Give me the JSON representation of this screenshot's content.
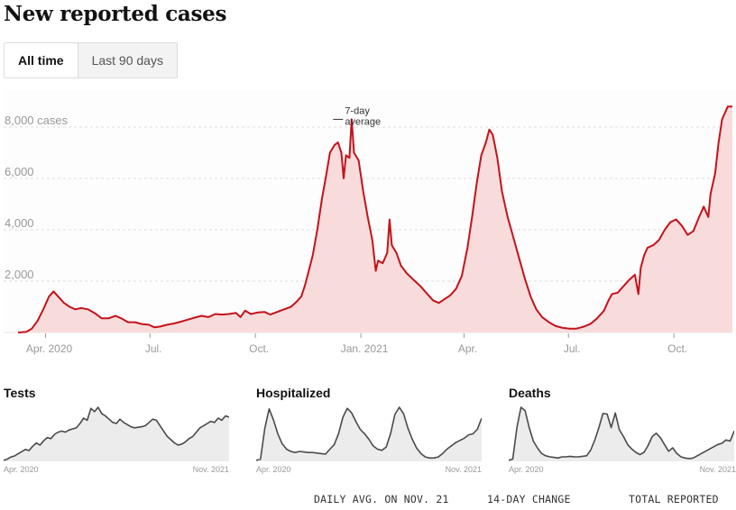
{
  "header": {
    "title": "New reported cases"
  },
  "toggle": {
    "options": [
      {
        "label": "All time",
        "active": true
      },
      {
        "label": "Last 90 days",
        "active": false
      }
    ]
  },
  "colors": {
    "line": "#c4121a",
    "fill": "#f8dcdc",
    "grid": "#dddddd",
    "axis_text": "#999999",
    "small_line": "#4a4a4a",
    "small_fill": "#ececec"
  },
  "chart_data": [
    {
      "type": "area",
      "title": "New reported cases",
      "xlabel": "",
      "ylabel": "cases",
      "ylim": [
        0,
        8800
      ],
      "xlim": [
        "2020-03-08",
        "2021-11-21"
      ],
      "grid": true,
      "y_ticks": [
        {
          "value": 2000,
          "label": "2,000"
        },
        {
          "value": 4000,
          "label": "4,000"
        },
        {
          "value": 6000,
          "label": "6,000"
        },
        {
          "value": 8000,
          "label": "8,000 cases"
        }
      ],
      "x_ticks": [
        {
          "date": "2020-04-01",
          "label": "Apr. 2020"
        },
        {
          "date": "2020-07-01",
          "label": "Jul."
        },
        {
          "date": "2020-10-01",
          "label": "Oct."
        },
        {
          "date": "2021-01-01",
          "label": "Jan. 2021"
        },
        {
          "date": "2021-04-01",
          "label": "Apr."
        },
        {
          "date": "2021-07-01",
          "label": "Jul."
        },
        {
          "date": "2021-10-01",
          "label": "Oct."
        }
      ],
      "annotation": {
        "text_line1": "7-day",
        "text_line2": "average",
        "date": "2020-12-07",
        "value": 8300
      },
      "series": [
        {
          "name": "7-day average",
          "points": [
            [
              "2020-03-08",
              0
            ],
            [
              "2020-03-15",
              20
            ],
            [
              "2020-03-20",
              150
            ],
            [
              "2020-03-25",
              450
            ],
            [
              "2020-03-30",
              900
            ],
            [
              "2020-04-04",
              1400
            ],
            [
              "2020-04-08",
              1600
            ],
            [
              "2020-04-12",
              1400
            ],
            [
              "2020-04-17",
              1150
            ],
            [
              "2020-04-22",
              1000
            ],
            [
              "2020-04-27",
              900
            ],
            [
              "2020-05-02",
              950
            ],
            [
              "2020-05-08",
              900
            ],
            [
              "2020-05-14",
              750
            ],
            [
              "2020-05-20",
              550
            ],
            [
              "2020-05-26",
              550
            ],
            [
              "2020-06-01",
              650
            ],
            [
              "2020-06-06",
              550
            ],
            [
              "2020-06-12",
              400
            ],
            [
              "2020-06-18",
              400
            ],
            [
              "2020-06-24",
              330
            ],
            [
              "2020-06-30",
              300
            ],
            [
              "2020-07-05",
              200
            ],
            [
              "2020-07-10",
              230
            ],
            [
              "2020-07-16",
              300
            ],
            [
              "2020-07-22",
              350
            ],
            [
              "2020-07-28",
              420
            ],
            [
              "2020-08-03",
              500
            ],
            [
              "2020-08-09",
              580
            ],
            [
              "2020-08-15",
              650
            ],
            [
              "2020-08-21",
              600
            ],
            [
              "2020-08-27",
              720
            ],
            [
              "2020-09-02",
              700
            ],
            [
              "2020-09-08",
              720
            ],
            [
              "2020-09-14",
              760
            ],
            [
              "2020-09-18",
              600
            ],
            [
              "2020-09-22",
              850
            ],
            [
              "2020-09-27",
              720
            ],
            [
              "2020-10-03",
              780
            ],
            [
              "2020-10-09",
              800
            ],
            [
              "2020-10-14",
              700
            ],
            [
              "2020-10-20",
              800
            ],
            [
              "2020-10-26",
              900
            ],
            [
              "2020-11-01",
              1000
            ],
            [
              "2020-11-06",
              1200
            ],
            [
              "2020-11-10",
              1400
            ],
            [
              "2020-11-13",
              1800
            ],
            [
              "2020-11-16",
              2300
            ],
            [
              "2020-11-20",
              3000
            ],
            [
              "2020-11-24",
              4000
            ],
            [
              "2020-11-28",
              5200
            ],
            [
              "2020-12-02",
              6200
            ],
            [
              "2020-12-05",
              7000
            ],
            [
              "2020-12-09",
              7300
            ],
            [
              "2020-12-12",
              7400
            ],
            [
              "2020-12-15",
              7000
            ],
            [
              "2020-12-17",
              6000
            ],
            [
              "2020-12-19",
              6900
            ],
            [
              "2020-12-22",
              6800
            ],
            [
              "2020-12-24",
              8300
            ],
            [
              "2020-12-26",
              7000
            ],
            [
              "2020-12-30",
              6700
            ],
            [
              "2021-01-03",
              5500
            ],
            [
              "2021-01-07",
              4500
            ],
            [
              "2021-01-11",
              3600
            ],
            [
              "2021-01-14",
              2400
            ],
            [
              "2021-01-16",
              2800
            ],
            [
              "2021-01-20",
              2700
            ],
            [
              "2021-01-24",
              3100
            ],
            [
              "2021-01-26",
              4400
            ],
            [
              "2021-01-28",
              3400
            ],
            [
              "2021-02-01",
              3100
            ],
            [
              "2021-02-05",
              2600
            ],
            [
              "2021-02-10",
              2300
            ],
            [
              "2021-02-16",
              2050
            ],
            [
              "2021-02-22",
              1800
            ],
            [
              "2021-02-28",
              1500
            ],
            [
              "2021-03-05",
              1250
            ],
            [
              "2021-03-10",
              1150
            ],
            [
              "2021-03-15",
              1300
            ],
            [
              "2021-03-20",
              1450
            ],
            [
              "2021-03-25",
              1700
            ],
            [
              "2021-03-30",
              2200
            ],
            [
              "2021-04-04",
              3300
            ],
            [
              "2021-04-08",
              4500
            ],
            [
              "2021-04-12",
              5800
            ],
            [
              "2021-04-16",
              6900
            ],
            [
              "2021-04-20",
              7400
            ],
            [
              "2021-04-23",
              7900
            ],
            [
              "2021-04-26",
              7700
            ],
            [
              "2021-04-30",
              6800
            ],
            [
              "2021-05-04",
              5500
            ],
            [
              "2021-05-09",
              4500
            ],
            [
              "2021-05-14",
              3700
            ],
            [
              "2021-05-19",
              2900
            ],
            [
              "2021-05-24",
              2100
            ],
            [
              "2021-05-29",
              1400
            ],
            [
              "2021-06-03",
              900
            ],
            [
              "2021-06-08",
              600
            ],
            [
              "2021-06-14",
              400
            ],
            [
              "2021-06-20",
              250
            ],
            [
              "2021-06-26",
              180
            ],
            [
              "2021-07-02",
              150
            ],
            [
              "2021-07-08",
              150
            ],
            [
              "2021-07-14",
              220
            ],
            [
              "2021-07-20",
              330
            ],
            [
              "2021-07-26",
              550
            ],
            [
              "2021-08-01",
              850
            ],
            [
              "2021-08-05",
              1250
            ],
            [
              "2021-08-08",
              1500
            ],
            [
              "2021-08-13",
              1550
            ],
            [
              "2021-08-18",
              1800
            ],
            [
              "2021-08-23",
              2050
            ],
            [
              "2021-08-28",
              2250
            ],
            [
              "2021-08-31",
              1500
            ],
            [
              "2021-09-02",
              2500
            ],
            [
              "2021-09-05",
              3000
            ],
            [
              "2021-09-08",
              3300
            ],
            [
              "2021-09-13",
              3400
            ],
            [
              "2021-09-18",
              3600
            ],
            [
              "2021-09-23",
              4000
            ],
            [
              "2021-09-28",
              4300
            ],
            [
              "2021-10-03",
              4400
            ],
            [
              "2021-10-08",
              4150
            ],
            [
              "2021-10-13",
              3800
            ],
            [
              "2021-10-18",
              3950
            ],
            [
              "2021-10-23",
              4500
            ],
            [
              "2021-10-27",
              4900
            ],
            [
              "2021-10-31",
              4500
            ],
            [
              "2021-11-02",
              5400
            ],
            [
              "2021-11-06",
              6200
            ],
            [
              "2021-11-09",
              7400
            ],
            [
              "2021-11-12",
              8300
            ],
            [
              "2021-11-17",
              8800
            ],
            [
              "2021-11-21",
              8800
            ]
          ]
        }
      ]
    },
    {
      "type": "area",
      "title": "Tests",
      "x_start_label": "Apr. 2020",
      "x_end_label": "Nov. 2021",
      "series": [
        {
          "name": "Tests",
          "values": [
            2,
            4,
            8,
            10,
            14,
            18,
            22,
            20,
            28,
            34,
            30,
            38,
            44,
            42,
            50,
            54,
            56,
            54,
            58,
            60,
            62,
            70,
            80,
            76,
            98,
            92,
            100,
            88,
            84,
            78,
            72,
            70,
            78,
            72,
            68,
            64,
            62,
            63,
            64,
            66,
            72,
            78,
            76,
            66,
            56,
            46,
            40,
            34,
            30,
            32,
            36,
            42,
            46,
            54,
            62,
            66,
            70,
            74,
            72,
            80,
            76,
            84,
            82
          ]
        }
      ]
    },
    {
      "type": "area",
      "title": "Hospitalized",
      "x_start_label": "Apr. 2020",
      "x_end_label": "Nov. 2021",
      "series": [
        {
          "name": "Hospitalized",
          "values": [
            2,
            4,
            60,
            95,
            75,
            50,
            32,
            22,
            18,
            16,
            18,
            17,
            16,
            16,
            15,
            14,
            13,
            22,
            30,
            50,
            80,
            96,
            88,
            72,
            58,
            50,
            40,
            28,
            22,
            20,
            26,
            50,
            85,
            98,
            86,
            60,
            40,
            24,
            14,
            8,
            6,
            6,
            8,
            14,
            22,
            28,
            34,
            38,
            42,
            48,
            50,
            58,
            78
          ]
        }
      ]
    },
    {
      "type": "area",
      "title": "Deaths",
      "x_start_label": "Apr. 2020",
      "x_end_label": "Nov. 2021",
      "series": [
        {
          "name": "Deaths",
          "values": [
            2,
            4,
            60,
            96,
            90,
            60,
            36,
            24,
            14,
            10,
            8,
            7,
            6,
            8,
            8,
            9,
            8,
            8,
            9,
            10,
            20,
            38,
            60,
            85,
            84,
            60,
            86,
            56,
            44,
            30,
            22,
            16,
            12,
            16,
            28,
            44,
            50,
            42,
            30,
            18,
            24,
            14,
            8,
            6,
            5,
            6,
            10,
            14,
            18,
            22,
            26,
            30,
            32,
            38,
            36,
            54
          ]
        }
      ]
    }
  ],
  "footer": {
    "columns": [
      "DAILY AVG. ON NOV. 21",
      "14-DAY CHANGE",
      "TOTAL REPORTED"
    ]
  }
}
